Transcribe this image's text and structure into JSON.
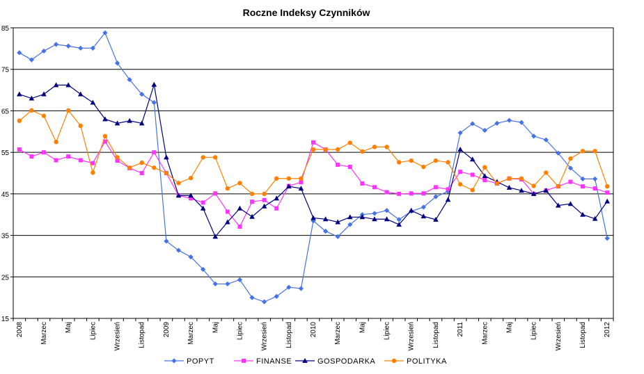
{
  "chart_data": {
    "type": "line",
    "title": "Roczne Indeksy Czynników",
    "xlabel": "",
    "ylabel": "",
    "ylim": [
      15,
      85
    ],
    "yticks": [
      15,
      25,
      35,
      45,
      55,
      65,
      75,
      85
    ],
    "grid": "horizontal",
    "legend": "bottom",
    "x_count": 49,
    "x_tick_labels": [
      {
        "i": 0,
        "label": "2008"
      },
      {
        "i": 2,
        "label": "Marzec"
      },
      {
        "i": 4,
        "label": "Maj"
      },
      {
        "i": 6,
        "label": "Lipiec"
      },
      {
        "i": 8,
        "label": "Wrzesień"
      },
      {
        "i": 10,
        "label": "Listopad"
      },
      {
        "i": 12,
        "label": "2009"
      },
      {
        "i": 14,
        "label": "Marzec"
      },
      {
        "i": 16,
        "label": "Maj"
      },
      {
        "i": 18,
        "label": "Lipiec"
      },
      {
        "i": 20,
        "label": "Wrzesień"
      },
      {
        "i": 22,
        "label": "Listopad"
      },
      {
        "i": 24,
        "label": "2010"
      },
      {
        "i": 26,
        "label": "Marzec"
      },
      {
        "i": 28,
        "label": "Maj"
      },
      {
        "i": 30,
        "label": "Lipiec"
      },
      {
        "i": 32,
        "label": "Wrzesień"
      },
      {
        "i": 34,
        "label": "Listopad"
      },
      {
        "i": 36,
        "label": "2011"
      },
      {
        "i": 38,
        "label": "Marzec"
      },
      {
        "i": 40,
        "label": "Maj"
      },
      {
        "i": 42,
        "label": "Lipiec"
      },
      {
        "i": 44,
        "label": "Wrzesień"
      },
      {
        "i": 46,
        "label": "Listopad"
      },
      {
        "i": 48,
        "label": "2012"
      }
    ],
    "series": [
      {
        "name": "POPYT",
        "color": "#4472e8",
        "marker": "diamond",
        "values": [
          79,
          77.3,
          79.4,
          81,
          80.6,
          80.1,
          80.1,
          83.8,
          76.5,
          72.5,
          69,
          67,
          33.6,
          31.4,
          29.8,
          26.8,
          23.3,
          23.3,
          24.3,
          20,
          19,
          20.3,
          22.5,
          22.2,
          38.5,
          36,
          34.7,
          37.6,
          40,
          40.3,
          41,
          38.8,
          40.8,
          41.8,
          44.3,
          45.6,
          59.7,
          61.9,
          60.3,
          62,
          62.7,
          62.2,
          58.9,
          58,
          54.8,
          51.2,
          48.6,
          48.6,
          34.3
        ]
      },
      {
        "name": "FINANSE",
        "color": "#ff33ff",
        "marker": "square",
        "values": [
          55.7,
          54,
          55,
          53.1,
          54,
          53.1,
          52.4,
          57.6,
          53,
          51.2,
          50,
          55,
          50,
          44.6,
          43.9,
          42.9,
          45.1,
          40.7,
          37.1,
          43.1,
          43.5,
          41.5,
          46.9,
          47.8,
          57.4,
          55.7,
          52,
          51.5,
          47.5,
          46.6,
          45.4,
          45,
          45.1,
          45.1,
          46.6,
          46.1,
          50.3,
          49.6,
          48.3,
          47.5,
          48.7,
          48.5,
          45,
          45.8,
          46.8,
          47.9,
          46.8,
          46.3,
          45.3
        ]
      },
      {
        "name": "GOSPODARKA",
        "color": "#000080",
        "marker": "triangle",
        "values": [
          69,
          68,
          69,
          71.2,
          71.2,
          69,
          67,
          63,
          62,
          62.6,
          62,
          71.3,
          53.8,
          44.6,
          44.6,
          41.5,
          34.7,
          38.2,
          41.5,
          39.5,
          42,
          43.9,
          46.8,
          46.3,
          39.2,
          38.9,
          38.2,
          39.4,
          39.4,
          38.9,
          38.9,
          37.6,
          41,
          39.6,
          38.8,
          43.6,
          55.7,
          53.3,
          49.3,
          47.9,
          46.5,
          45.8,
          45,
          45.8,
          42.2,
          42.6,
          40,
          39,
          43.2
        ]
      },
      {
        "name": "POLITYKA",
        "color": "#ff8000",
        "marker": "circle",
        "values": [
          62.6,
          65.1,
          63.8,
          57.5,
          65.1,
          61.4,
          50.1,
          58.9,
          53.8,
          51.3,
          52.5,
          51.3,
          50,
          47.6,
          48.8,
          53.8,
          53.8,
          46.3,
          47.6,
          45,
          45,
          48.7,
          48.7,
          48.7,
          55.7,
          55.7,
          55.7,
          57.3,
          55.2,
          56.3,
          56.3,
          52.6,
          53,
          51.5,
          53,
          52.6,
          47.3,
          45.9,
          51.4,
          47.5,
          48.7,
          48.7,
          46.9,
          50.1,
          46.8,
          53.5,
          55.3,
          55.3,
          46.8
        ]
      }
    ]
  }
}
